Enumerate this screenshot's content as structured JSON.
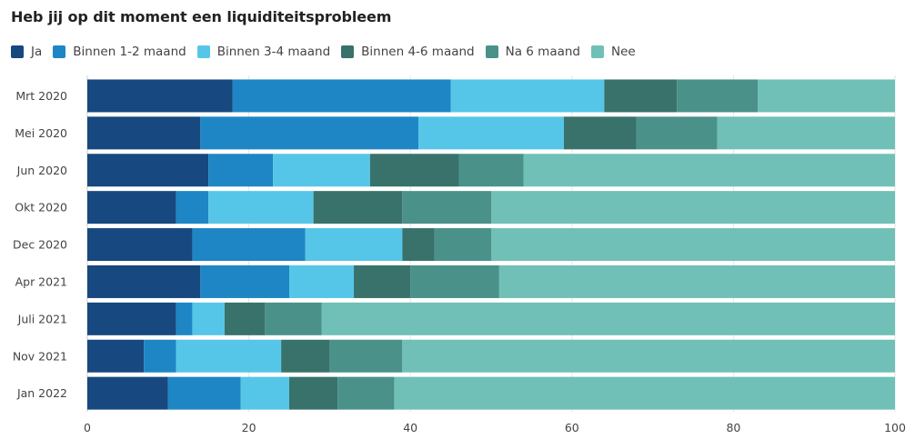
{
  "chart_data": {
    "type": "bar",
    "orientation": "horizontal",
    "stacked": true,
    "title": "Heb jij op dit moment een liquiditeitsprobleem",
    "xlabel": "",
    "ylabel": "",
    "xlim": [
      0,
      100
    ],
    "xticks": [
      0,
      20,
      40,
      60,
      80,
      100
    ],
    "grid": true,
    "legend_position": "top-left",
    "categories": [
      "Mrt 2020",
      "Mei 2020",
      "Jun 2020",
      "Okt 2020",
      "Dec 2020",
      "Apr 2021",
      "Juli 2021",
      "Nov 2021",
      "Jan 2022"
    ],
    "series": [
      {
        "name": "Ja",
        "color": "#17487f",
        "values": [
          18,
          14,
          15,
          11,
          13,
          14,
          11,
          7,
          10
        ]
      },
      {
        "name": "Binnen 1-2 maand",
        "color": "#1e86c4",
        "values": [
          27,
          27,
          8,
          4,
          14,
          11,
          2,
          4,
          9
        ]
      },
      {
        "name": "Binnen 3-4 maand",
        "color": "#56c6e8",
        "values": [
          19,
          18,
          12,
          13,
          12,
          8,
          4,
          13,
          6
        ]
      },
      {
        "name": "Binnen 4-6 maand",
        "color": "#38726b",
        "values": [
          9,
          9,
          11,
          11,
          4,
          7,
          5,
          6,
          6
        ]
      },
      {
        "name": "Na 6 maand",
        "color": "#4a918a",
        "values": [
          10,
          10,
          8,
          11,
          7,
          11,
          7,
          9,
          7
        ]
      },
      {
        "name": "Nee",
        "color": "#70c0b7",
        "values": [
          17,
          22,
          46,
          50,
          50,
          49,
          71,
          61,
          62
        ]
      }
    ]
  }
}
